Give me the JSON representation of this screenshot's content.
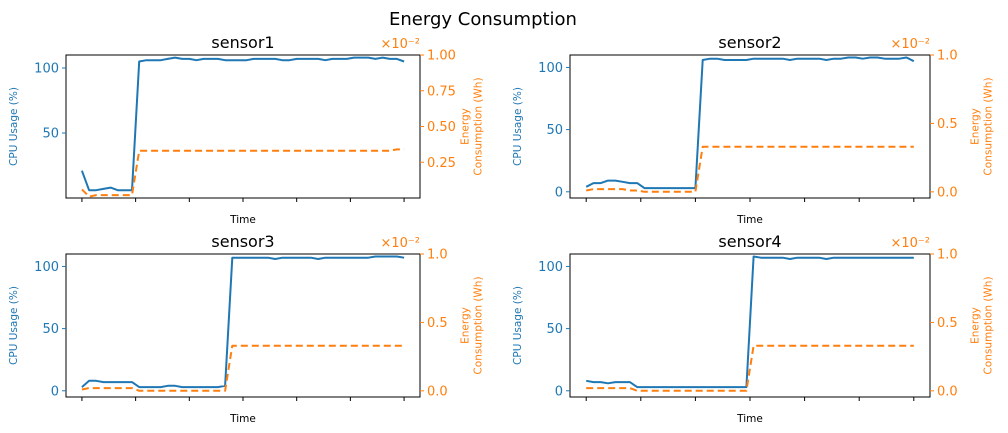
{
  "title": "Energy Consumption",
  "colors": {
    "cpu": "#1f77b4",
    "energy": "#ff7f0e",
    "axes": "#000000"
  },
  "chart_data": [
    {
      "type": "line",
      "title": "sensor1",
      "xlabel": "Time",
      "ylabel": "CPU Usage (%)",
      "y2label": "Energy\nConsumption (Wh)",
      "y2_multiplier": "×10⁻²",
      "ylim": [
        0,
        110
      ],
      "y2lim": [
        0.0,
        1.0
      ],
      "yticks": [
        50,
        100
      ],
      "y2ticks": [
        0.25,
        0.5,
        0.75,
        1.0
      ],
      "y2ticklabels": [
        "0.25",
        "0.50",
        "0.75",
        "1.00"
      ],
      "series": [
        {
          "name": "CPU Usage (%)",
          "axis": "left",
          "values": [
            21,
            6,
            6,
            7,
            8,
            6,
            6,
            6,
            105,
            106,
            106,
            106,
            107,
            108,
            107,
            107,
            106,
            107,
            107,
            107,
            106,
            106,
            106,
            106,
            107,
            107,
            107,
            107,
            106,
            106,
            107,
            107,
            107,
            107,
            106,
            107,
            107,
            107,
            108,
            108,
            108,
            107,
            108,
            107,
            107,
            105
          ]
        },
        {
          "name": "Energy Consumption (Wh)",
          "axis": "right",
          "values": [
            0.06,
            0.01,
            0.02,
            0.02,
            0.02,
            0.02,
            0.02,
            0.02,
            0.33,
            0.33,
            0.33,
            0.33,
            0.33,
            0.33,
            0.33,
            0.33,
            0.33,
            0.33,
            0.33,
            0.33,
            0.33,
            0.33,
            0.33,
            0.33,
            0.33,
            0.33,
            0.33,
            0.33,
            0.33,
            0.33,
            0.33,
            0.33,
            0.33,
            0.33,
            0.33,
            0.33,
            0.33,
            0.33,
            0.33,
            0.33,
            0.33,
            0.33,
            0.33,
            0.33,
            0.34,
            0.34
          ]
        }
      ]
    },
    {
      "type": "line",
      "title": "sensor2",
      "xlabel": "Time",
      "ylabel": "CPU Usage (%)",
      "y2label": "Energy\nConsumption (Wh)",
      "y2_multiplier": "×10⁻²",
      "ylim": [
        -5,
        110
      ],
      "y2lim": [
        -0.045,
        1.0
      ],
      "yticks": [
        0,
        50,
        100
      ],
      "y2ticks": [
        0.0,
        0.5,
        1.0
      ],
      "y2ticklabels": [
        "0.0",
        "0.5",
        "1.0"
      ],
      "series": [
        {
          "name": "CPU Usage (%)",
          "axis": "left",
          "values": [
            4,
            7,
            7,
            9,
            9,
            8,
            7,
            7,
            3,
            3,
            3,
            3,
            3,
            3,
            3,
            3,
            106,
            107,
            107,
            106,
            106,
            106,
            106,
            107,
            107,
            107,
            107,
            107,
            106,
            107,
            107,
            107,
            107,
            106,
            107,
            107,
            108,
            108,
            107,
            108,
            108,
            107,
            107,
            107,
            108,
            105
          ]
        },
        {
          "name": "Energy Consumption (Wh)",
          "axis": "right",
          "values": [
            0.01,
            0.02,
            0.02,
            0.02,
            0.02,
            0.02,
            0.01,
            0.01,
            0.0,
            0.0,
            0.0,
            0.0,
            0.0,
            0.0,
            0.0,
            0.0,
            0.33,
            0.33,
            0.33,
            0.33,
            0.33,
            0.33,
            0.33,
            0.33,
            0.33,
            0.33,
            0.33,
            0.33,
            0.33,
            0.33,
            0.33,
            0.33,
            0.33,
            0.33,
            0.33,
            0.33,
            0.33,
            0.33,
            0.33,
            0.33,
            0.33,
            0.33,
            0.33,
            0.33,
            0.33,
            0.33
          ]
        }
      ]
    },
    {
      "type": "line",
      "title": "sensor3",
      "xlabel": "Time",
      "ylabel": "CPU Usage (%)",
      "y2label": "Energy\nConsumption (Wh)",
      "y2_multiplier": "×10⁻²",
      "ylim": [
        -5,
        110
      ],
      "y2lim": [
        -0.045,
        1.0
      ],
      "yticks": [
        0,
        50,
        100
      ],
      "y2ticks": [
        0.0,
        0.5,
        1.0
      ],
      "y2ticklabels": [
        "0.0",
        "0.5",
        "1.0"
      ],
      "series": [
        {
          "name": "CPU Usage (%)",
          "axis": "left",
          "values": [
            3,
            8,
            8,
            7,
            7,
            7,
            7,
            7,
            3,
            3,
            3,
            3,
            4,
            4,
            3,
            3,
            3,
            3,
            3,
            3,
            4,
            107,
            107,
            107,
            107,
            107,
            107,
            106,
            107,
            107,
            107,
            107,
            107,
            106,
            107,
            107,
            107,
            107,
            107,
            107,
            107,
            108,
            108,
            108,
            108,
            107
          ]
        },
        {
          "name": "Energy Consumption (Wh)",
          "axis": "right",
          "values": [
            0.01,
            0.02,
            0.02,
            0.02,
            0.02,
            0.02,
            0.02,
            0.02,
            0.0,
            0.0,
            0.0,
            0.0,
            0.0,
            0.0,
            0.0,
            0.0,
            0.0,
            0.0,
            0.0,
            0.0,
            0.0,
            0.33,
            0.33,
            0.33,
            0.33,
            0.33,
            0.33,
            0.33,
            0.33,
            0.33,
            0.33,
            0.33,
            0.33,
            0.33,
            0.33,
            0.33,
            0.33,
            0.33,
            0.33,
            0.33,
            0.33,
            0.33,
            0.33,
            0.33,
            0.33,
            0.33
          ]
        }
      ]
    },
    {
      "type": "line",
      "title": "sensor4",
      "xlabel": "Time",
      "ylabel": "CPU Usage (%)",
      "y2label": "Energy\nConsumption (Wh)",
      "y2_multiplier": "×10⁻²",
      "ylim": [
        -5,
        110
      ],
      "y2lim": [
        -0.045,
        1.0
      ],
      "yticks": [
        0,
        50,
        100
      ],
      "y2ticks": [
        0.0,
        0.5,
        1.0
      ],
      "y2ticklabels": [
        "0.0",
        "0.5",
        "1.0"
      ],
      "series": [
        {
          "name": "CPU Usage (%)",
          "axis": "left",
          "values": [
            8,
            7,
            7,
            6,
            7,
            7,
            7,
            3,
            3,
            3,
            3,
            3,
            3,
            3,
            3,
            3,
            3,
            3,
            3,
            3,
            3,
            3,
            3,
            108,
            107,
            107,
            107,
            107,
            106,
            107,
            107,
            107,
            107,
            106,
            107,
            107,
            107,
            107,
            107,
            107,
            107,
            107,
            107,
            107,
            107,
            107
          ]
        },
        {
          "name": "Energy Consumption (Wh)",
          "axis": "right",
          "values": [
            0.02,
            0.02,
            0.02,
            0.02,
            0.02,
            0.02,
            0.02,
            0.0,
            0.0,
            0.0,
            0.0,
            0.0,
            0.0,
            0.0,
            0.0,
            0.0,
            0.0,
            0.0,
            0.0,
            0.0,
            0.0,
            0.0,
            0.0,
            0.33,
            0.33,
            0.33,
            0.33,
            0.33,
            0.33,
            0.33,
            0.33,
            0.33,
            0.33,
            0.33,
            0.33,
            0.33,
            0.33,
            0.33,
            0.33,
            0.33,
            0.33,
            0.33,
            0.33,
            0.33,
            0.33,
            0.33
          ]
        }
      ]
    }
  ]
}
